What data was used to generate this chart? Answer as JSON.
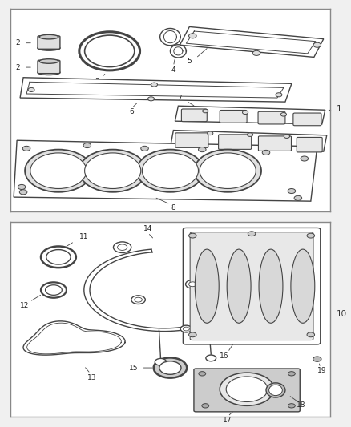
{
  "bg_color": "#f0f0f0",
  "panel_bg": "#ffffff",
  "ec": "#444444",
  "lw": 1.0
}
